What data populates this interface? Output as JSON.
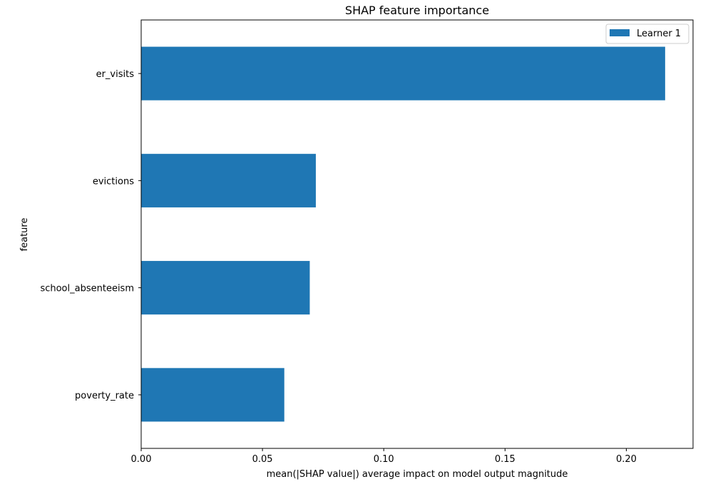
{
  "chart_data": {
    "type": "bar",
    "orientation": "horizontal",
    "title": "SHAP feature importance",
    "xlabel": "mean(|SHAP value|) average impact on model output magnitude",
    "ylabel": "feature",
    "categories": [
      "er_visits",
      "evictions",
      "school_absenteeism",
      "poverty_rate"
    ],
    "series": [
      {
        "name": "Learner 1",
        "color": "#1f77b4",
        "values": [
          0.216,
          0.072,
          0.0695,
          0.059
        ]
      }
    ],
    "xlim": [
      0,
      0.2275
    ],
    "xticks": [
      0.0,
      0.05,
      0.1,
      0.15,
      0.2
    ],
    "xtick_labels": [
      "0.00",
      "0.05",
      "0.10",
      "0.15",
      "0.20"
    ],
    "grid": false,
    "legend_position": "top-right"
  }
}
